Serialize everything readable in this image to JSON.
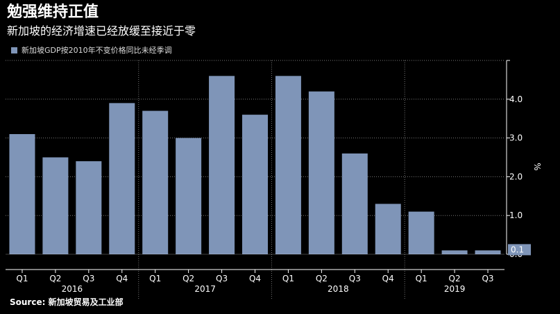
{
  "header": {
    "title": "勉强维持正值",
    "subtitle": "新加坡的经济增速已经放缓至接近于零"
  },
  "legend": {
    "label": "新加坡GDP按2010年不变价格同比未经季调"
  },
  "source": "Source: 新加坡贸易及工业部",
  "colors": {
    "background": "#000000",
    "bar": "#7f95b8",
    "text": "#ffffff",
    "last_value_box": "#7f95b8"
  },
  "chart_data": {
    "type": "bar",
    "categories": [
      "Q1",
      "Q2",
      "Q3",
      "Q4",
      "Q1",
      "Q2",
      "Q3",
      "Q4",
      "Q1",
      "Q2",
      "Q3",
      "Q4",
      "Q1",
      "Q2",
      "Q3"
    ],
    "years": [
      {
        "label": "2016",
        "start": 0,
        "end": 3
      },
      {
        "label": "2017",
        "start": 4,
        "end": 7
      },
      {
        "label": "2018",
        "start": 8,
        "end": 11
      },
      {
        "label": "2019",
        "start": 12,
        "end": 14
      }
    ],
    "series": [
      {
        "values": [
          3.1,
          2.5,
          2.4,
          3.9,
          3.7,
          3.0,
          4.6,
          3.6,
          4.6,
          4.2,
          2.6,
          1.3,
          1.1,
          0.1,
          0.1
        ]
      }
    ],
    "yticks": [
      "0.0",
      "1.0",
      "2.0",
      "3.0",
      "4.0"
    ],
    "ylabel": "%",
    "ylim": [
      0,
      5.0
    ],
    "last_value_label": "0.1",
    "grid": true,
    "axis_position": "right"
  }
}
